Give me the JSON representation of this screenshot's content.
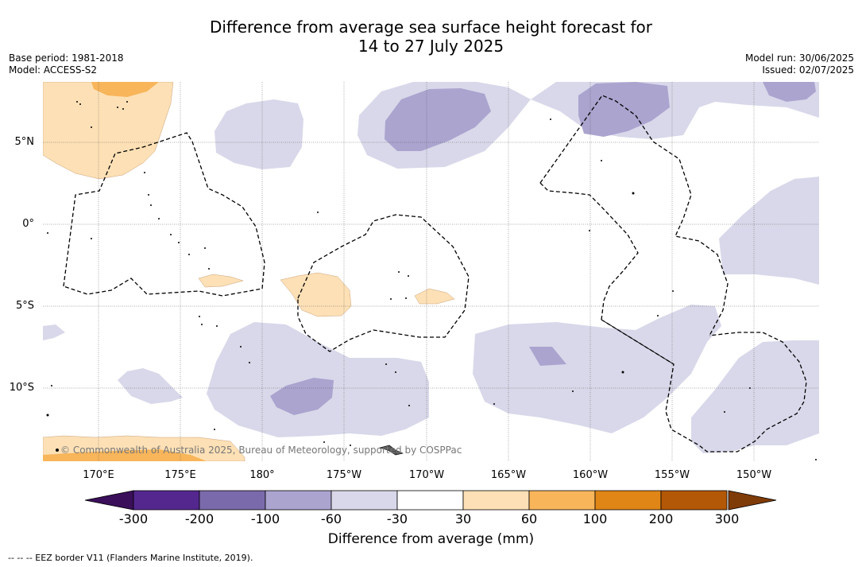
{
  "header": {
    "title_line1": "Difference from average sea surface height forecast for",
    "title_line2": "14 to 27 July 2025",
    "base_period": "Base period: 1981-2018",
    "model": "Model: ACCESS-S2",
    "model_run": "Model run: 30/06/2025",
    "issued": "Issued: 02/07/2025"
  },
  "map": {
    "lat_labels": [
      "5°N",
      "0°",
      "5°S",
      "10°S"
    ],
    "lon_labels": [
      "170°E",
      "175°E",
      "180°",
      "175°W",
      "170°W",
      "165°W",
      "160°W",
      "155°W",
      "150°W"
    ],
    "copyright": "© Commonwealth of Australia 2025, Bureau of Meteorology, supported by COSPPac"
  },
  "colorbar": {
    "ticks": [
      "-300",
      "-200",
      "-100",
      "-60",
      "-30",
      "30",
      "60",
      "100",
      "200",
      "300"
    ],
    "colors": [
      "#54278f",
      "#7b6aab",
      "#aba4cf",
      "#d8d8ea",
      "#ffffff",
      "#fde0b5",
      "#f8b55a",
      "#e08616",
      "#b35806"
    ],
    "extend_low_color": "#3b0f5a",
    "extend_high_color": "#7f3b08",
    "title": "Difference from average (mm)"
  },
  "footnote": "-- -- -- EEZ border V11 (Flanders Marine Institute, 2019)."
}
